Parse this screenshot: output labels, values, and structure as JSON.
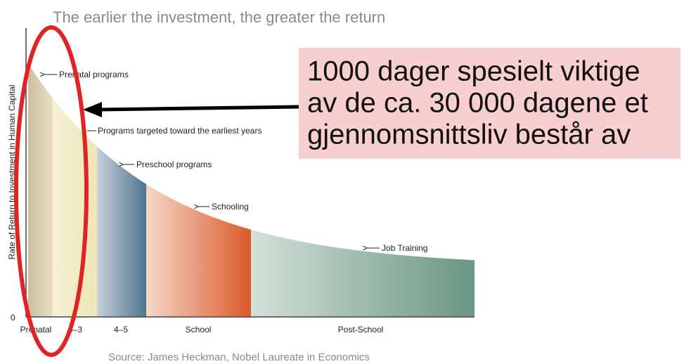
{
  "title": "The earlier the investment, the greater the return",
  "y_axis_label": "Rate of Return to Investment in Human Capital",
  "y_origin_label": "0",
  "curve_labels": [
    "Prenatal programs",
    "Programs targeted toward the earliest years",
    "Preschool programs",
    "Schooling",
    "Job Training"
  ],
  "categories": [
    "Prenatal",
    "0–3",
    "4–5",
    "School",
    "Post-School"
  ],
  "source": "Source: James Heckman, Nobel Laureate in Economics",
  "callout": {
    "lines": [
      "1000 dager spesielt viktige",
      "av de ca. 30 000 dagene et",
      "gjennomsnittsliv består av"
    ]
  }
}
